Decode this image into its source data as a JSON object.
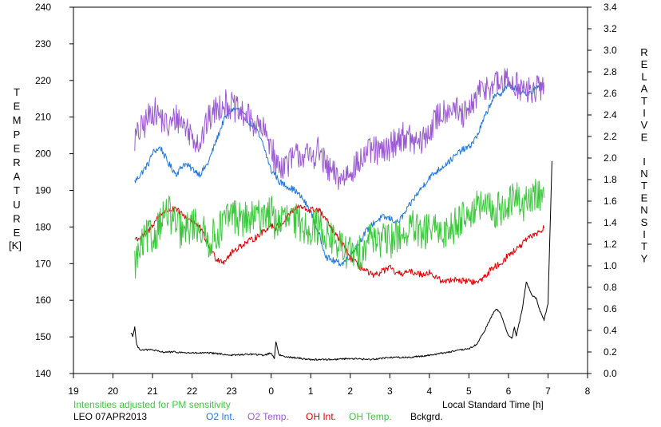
{
  "chart_data": {
    "type": "line",
    "station": "LEO 07APR2013",
    "note": "Intensities adjusted for PM sensitivity",
    "xlabel": "Local Standard Time [h]",
    "ylabel_left_letters": [
      "T",
      "E",
      "M",
      "P",
      "E",
      "R",
      "A",
      "T",
      "U",
      "R",
      "E"
    ],
    "ylabel_left_unit": "[K]",
    "ylabel_right_letters": [
      "R",
      "E",
      "L",
      "A",
      "T",
      "I",
      "V",
      "E",
      "",
      "I",
      "N",
      "T",
      "E",
      "N",
      "S",
      "I",
      "T",
      "Y"
    ],
    "x_ticks": [
      "19",
      "20",
      "21",
      "22",
      "23",
      "0",
      "1",
      "2",
      "3",
      "4",
      "5",
      "6",
      "7",
      "8"
    ],
    "y_left_ticks": [
      "140",
      "150",
      "160",
      "170",
      "180",
      "190",
      "200",
      "210",
      "220",
      "230",
      "240"
    ],
    "y_right_ticks": [
      "0.0",
      "0.2",
      "0.4",
      "0.6",
      "0.8",
      "1.0",
      "1.2",
      "1.4",
      "1.6",
      "1.8",
      "2.0",
      "2.2",
      "2.4",
      "2.6",
      "2.8",
      "3.0",
      "3.2",
      "3.4"
    ],
    "xlim": [
      19,
      32
    ],
    "ylim_left": [
      140,
      240
    ],
    "ylim_right": [
      0.0,
      3.4
    ],
    "grid": false,
    "series": [
      {
        "name": "O2 Int.",
        "color": "#1e78dc",
        "axis": "right",
        "noise": 0.03,
        "x": [
          20.55,
          20.7,
          20.9,
          21.0,
          21.2,
          21.4,
          21.6,
          21.8,
          22.0,
          22.2,
          22.4,
          22.6,
          22.8,
          23.0,
          23.2,
          23.4,
          23.6,
          23.8,
          24.0,
          24.1,
          24.2,
          24.4,
          24.6,
          24.8,
          25.0,
          25.2,
          25.4,
          25.6,
          25.8,
          26.0,
          26.2,
          26.4,
          26.6,
          26.8,
          27.0,
          27.2,
          27.4,
          27.6,
          27.8,
          28.0,
          28.2,
          28.4,
          28.6,
          28.8,
          29.0,
          29.2,
          29.4,
          29.6,
          29.8,
          30.0,
          30.2,
          30.4,
          30.6,
          30.8,
          30.9
        ],
        "y": [
          1.78,
          1.85,
          1.95,
          2.05,
          2.1,
          1.95,
          1.85,
          1.95,
          1.9,
          1.85,
          1.95,
          2.15,
          2.35,
          2.45,
          2.45,
          2.35,
          2.28,
          2.12,
          1.88,
          1.85,
          1.78,
          1.74,
          1.7,
          1.62,
          1.5,
          1.3,
          1.08,
          1.04,
          1.02,
          1.1,
          1.2,
          1.32,
          1.4,
          1.45,
          1.44,
          1.4,
          1.5,
          1.62,
          1.72,
          1.82,
          1.88,
          1.94,
          2.0,
          2.07,
          2.1,
          2.2,
          2.38,
          2.55,
          2.6,
          2.68,
          2.64,
          2.6,
          2.62,
          2.68,
          2.7
        ]
      },
      {
        "name": "O2 Temp.",
        "color": "#9c5ad2",
        "axis": "left",
        "noise": 4.0,
        "x": [
          20.55,
          20.8,
          21.0,
          21.2,
          21.4,
          21.6,
          21.8,
          22.0,
          22.2,
          22.4,
          22.6,
          22.8,
          23.0,
          23.2,
          23.4,
          23.6,
          23.8,
          24.0,
          24.1,
          24.3,
          24.5,
          24.7,
          25.0,
          25.2,
          25.4,
          25.6,
          25.8,
          26.0,
          26.2,
          26.4,
          26.6,
          26.8,
          27.0,
          27.2,
          27.4,
          27.6,
          27.8,
          28.0,
          28.2,
          28.4,
          28.6,
          28.8,
          29.0,
          29.2,
          29.4,
          29.6,
          29.8,
          30.0,
          30.2,
          30.4,
          30.6,
          30.8,
          30.9
        ],
        "y": [
          204,
          208,
          212,
          210,
          207,
          210,
          208,
          205,
          203,
          209,
          212,
          214,
          213,
          211,
          210,
          208,
          206,
          203,
          197,
          197,
          198,
          200,
          199,
          201,
          196,
          194,
          193,
          196,
          197,
          200,
          201,
          200,
          202,
          204,
          205,
          203,
          203,
          206,
          210,
          212,
          213,
          210,
          211,
          216,
          218,
          219,
          219,
          220,
          219,
          217,
          217,
          218,
          219
        ]
      },
      {
        "name": "OH Int.",
        "color": "#e00000",
        "axis": "right",
        "noise": 0.03,
        "x": [
          20.55,
          20.7,
          20.9,
          21.0,
          21.2,
          21.4,
          21.6,
          21.8,
          22.0,
          22.2,
          22.4,
          22.6,
          22.8,
          23.0,
          23.2,
          23.4,
          23.6,
          23.8,
          24.0,
          24.1,
          24.3,
          24.5,
          24.7,
          24.9,
          25.0,
          25.2,
          25.4,
          25.6,
          25.8,
          26.0,
          26.2,
          26.4,
          26.6,
          26.8,
          27.0,
          27.2,
          27.4,
          27.6,
          27.8,
          28.0,
          28.2,
          28.4,
          28.6,
          28.8,
          29.0,
          29.2,
          29.4,
          29.6,
          29.8,
          30.0,
          30.2,
          30.4,
          30.6,
          30.8,
          30.9
        ],
        "y": [
          1.25,
          1.26,
          1.32,
          1.38,
          1.48,
          1.52,
          1.52,
          1.46,
          1.42,
          1.35,
          1.2,
          1.07,
          1.04,
          1.12,
          1.18,
          1.22,
          1.26,
          1.32,
          1.38,
          1.35,
          1.4,
          1.5,
          1.55,
          1.52,
          1.52,
          1.52,
          1.42,
          1.3,
          1.2,
          1.08,
          1.0,
          0.95,
          0.9,
          0.95,
          0.98,
          0.92,
          0.94,
          0.94,
          0.92,
          0.94,
          0.88,
          0.85,
          0.88,
          0.86,
          0.86,
          0.84,
          0.9,
          0.98,
          1.02,
          1.1,
          1.15,
          1.22,
          1.28,
          1.32,
          1.35
        ]
      },
      {
        "name": "OH Temp.",
        "color": "#3cc83c",
        "axis": "left",
        "noise": 5.0,
        "x": [
          20.55,
          20.7,
          20.9,
          21.0,
          21.2,
          21.4,
          21.6,
          21.8,
          22.0,
          22.2,
          22.4,
          22.6,
          22.8,
          23.0,
          23.2,
          23.4,
          23.6,
          23.8,
          24.0,
          24.1,
          24.3,
          24.5,
          24.7,
          24.9,
          25.0,
          25.2,
          25.4,
          25.6,
          25.8,
          26.0,
          26.2,
          26.4,
          26.6,
          26.8,
          27.0,
          27.2,
          27.4,
          27.6,
          27.8,
          28.0,
          28.2,
          28.4,
          28.6,
          28.8,
          29.0,
          29.2,
          29.4,
          29.6,
          29.8,
          30.0,
          30.2,
          30.4,
          30.6,
          30.8,
          30.9
        ],
        "y": [
          170,
          174,
          178,
          176,
          182,
          184,
          180,
          178,
          181,
          180,
          176,
          178,
          181,
          184,
          182,
          182,
          182,
          184,
          184,
          181,
          182,
          182,
          181,
          180,
          180,
          180,
          178,
          176,
          174,
          173,
          172,
          176,
          178,
          176,
          176,
          178,
          178,
          180,
          177,
          180,
          178,
          179,
          180,
          183,
          184,
          185,
          186,
          184,
          185,
          186,
          188,
          186,
          188,
          189,
          188
        ]
      },
      {
        "name": "Bckgrd.",
        "color": "#000000",
        "axis": "right",
        "noise": 0.008,
        "x": [
          20.45,
          20.5,
          20.55,
          20.6,
          20.65,
          20.7,
          20.8,
          21.0,
          21.2,
          21.5,
          22.0,
          22.5,
          23.0,
          23.5,
          23.8,
          24.0,
          24.08,
          24.12,
          24.2,
          24.5,
          25.0,
          25.5,
          26.0,
          26.5,
          27.0,
          27.5,
          28.0,
          28.5,
          29.0,
          29.2,
          29.4,
          29.6,
          29.7,
          29.8,
          29.9,
          30.0,
          30.1,
          30.15,
          30.2,
          30.35,
          30.45,
          30.6,
          30.7,
          30.8,
          30.9,
          31.0,
          31.1
        ],
        "y": [
          0.38,
          0.35,
          0.43,
          0.26,
          0.24,
          0.22,
          0.22,
          0.22,
          0.2,
          0.2,
          0.19,
          0.19,
          0.17,
          0.18,
          0.17,
          0.19,
          0.14,
          0.3,
          0.17,
          0.15,
          0.13,
          0.13,
          0.14,
          0.13,
          0.15,
          0.15,
          0.17,
          0.2,
          0.23,
          0.27,
          0.4,
          0.55,
          0.6,
          0.56,
          0.45,
          0.35,
          0.33,
          0.43,
          0.35,
          0.6,
          0.85,
          0.72,
          0.7,
          0.58,
          0.5,
          0.65,
          1.97
        ]
      }
    ]
  }
}
